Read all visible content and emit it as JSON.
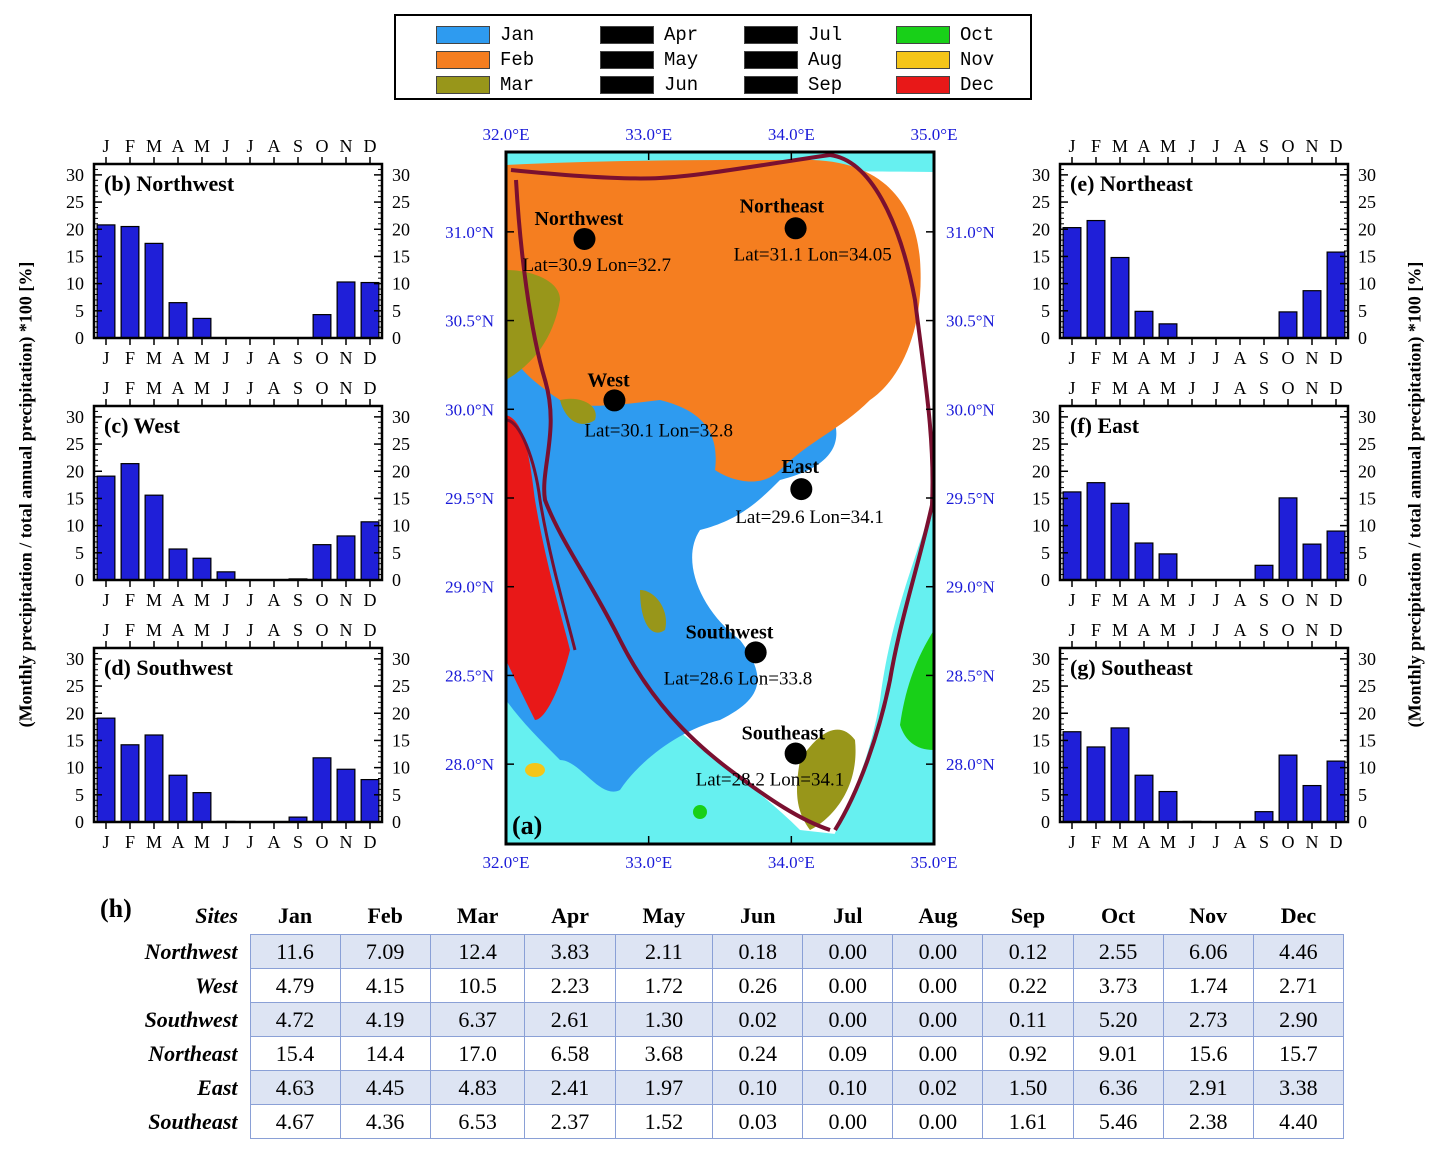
{
  "legend": [
    {
      "label": "Jan",
      "color": "#2e9bf0"
    },
    {
      "label": "Feb",
      "color": "#f57e20"
    },
    {
      "label": "Mar",
      "color": "#98961a"
    },
    {
      "label": "Apr",
      "color": "#000000"
    },
    {
      "label": "May",
      "color": "#000000"
    },
    {
      "label": "Jun",
      "color": "#000000"
    },
    {
      "label": "Jul",
      "color": "#000000"
    },
    {
      "label": "Aug",
      "color": "#000000"
    },
    {
      "label": "Sep",
      "color": "#000000"
    },
    {
      "label": "Oct",
      "color": "#18d018"
    },
    {
      "label": "Nov",
      "color": "#f5c518"
    },
    {
      "label": "Dec",
      "color": "#e81818"
    }
  ],
  "y_axis_label": "(Monthly precipitation / total annual precipitation) *100 [%]",
  "chart_data": [
    {
      "type": "bar",
      "panel": "(b)",
      "title": "Northwest",
      "categories": [
        "J",
        "F",
        "M",
        "A",
        "M",
        "J",
        "J",
        "A",
        "S",
        "O",
        "N",
        "D"
      ],
      "values": [
        20.8,
        20.5,
        17.4,
        6.5,
        3.6,
        0,
        0,
        0,
        0,
        4.3,
        10.3,
        10.2
      ],
      "ylim": [
        0,
        32
      ],
      "yticks": [
        0,
        5,
        10,
        15,
        20,
        25,
        30
      ],
      "bar_color": "#1f1fd8"
    },
    {
      "type": "bar",
      "panel": "(c)",
      "title": "West",
      "categories": [
        "J",
        "F",
        "M",
        "A",
        "M",
        "J",
        "J",
        "A",
        "S",
        "O",
        "N",
        "D"
      ],
      "values": [
        19.1,
        21.4,
        15.6,
        5.7,
        4.0,
        1.5,
        0,
        0,
        0.2,
        6.5,
        8.1,
        10.7
      ],
      "ylim": [
        0,
        32
      ],
      "yticks": [
        0,
        5,
        10,
        15,
        20,
        25,
        30
      ],
      "bar_color": "#1f1fd8"
    },
    {
      "type": "bar",
      "panel": "(d)",
      "title": "Southwest",
      "categories": [
        "J",
        "F",
        "M",
        "A",
        "M",
        "J",
        "J",
        "A",
        "S",
        "O",
        "N",
        "D"
      ],
      "values": [
        19.1,
        14.2,
        16.0,
        8.6,
        5.4,
        0.1,
        0,
        0,
        0.9,
        11.8,
        9.7,
        7.8
      ],
      "ylim": [
        0,
        32
      ],
      "yticks": [
        0,
        5,
        10,
        15,
        20,
        25,
        30
      ],
      "bar_color": "#1f1fd8"
    },
    {
      "type": "bar",
      "panel": "(e)",
      "title": "Northeast",
      "categories": [
        "J",
        "F",
        "M",
        "A",
        "M",
        "J",
        "J",
        "A",
        "S",
        "O",
        "N",
        "D"
      ],
      "values": [
        20.3,
        21.6,
        14.8,
        4.9,
        2.6,
        0,
        0,
        0,
        0,
        4.8,
        8.7,
        15.8
      ],
      "ylim": [
        0,
        32
      ],
      "yticks": [
        0,
        5,
        10,
        15,
        20,
        25,
        30
      ],
      "bar_color": "#1f1fd8"
    },
    {
      "type": "bar",
      "panel": "(f)",
      "title": "East",
      "categories": [
        "J",
        "F",
        "M",
        "A",
        "M",
        "J",
        "J",
        "A",
        "S",
        "O",
        "N",
        "D"
      ],
      "values": [
        16.2,
        17.9,
        14.1,
        6.8,
        4.8,
        0,
        0,
        0,
        2.7,
        15.1,
        6.6,
        9.0
      ],
      "ylim": [
        0,
        32
      ],
      "yticks": [
        0,
        5,
        10,
        15,
        20,
        25,
        30
      ],
      "bar_color": "#1f1fd8"
    },
    {
      "type": "bar",
      "panel": "(g)",
      "title": "Southeast",
      "categories": [
        "J",
        "F",
        "M",
        "A",
        "M",
        "J",
        "J",
        "A",
        "S",
        "O",
        "N",
        "D"
      ],
      "values": [
        16.6,
        13.8,
        17.3,
        8.6,
        5.6,
        0.1,
        0,
        0,
        1.9,
        12.3,
        6.7,
        11.2
      ],
      "ylim": [
        0,
        32
      ],
      "yticks": [
        0,
        5,
        10,
        15,
        20,
        25,
        30
      ],
      "bar_color": "#1f1fd8"
    },
    {
      "type": "table",
      "panel": "(h)",
      "columns": [
        "Sites",
        "Jan",
        "Feb",
        "Mar",
        "Apr",
        "May",
        "Jun",
        "Jul",
        "Aug",
        "Sep",
        "Oct",
        "Nov",
        "Dec"
      ],
      "rows": [
        [
          "Northwest",
          "11.6",
          "7.09",
          "12.4",
          "3.83",
          "2.11",
          "0.18",
          "0.00",
          "0.00",
          "0.12",
          "2.55",
          "6.06",
          "4.46"
        ],
        [
          "West",
          "4.79",
          "4.15",
          "10.5",
          "2.23",
          "1.72",
          "0.26",
          "0.00",
          "0.00",
          "0.22",
          "3.73",
          "1.74",
          "2.71"
        ],
        [
          "Southwest",
          "4.72",
          "4.19",
          "6.37",
          "2.61",
          "1.30",
          "0.02",
          "0.00",
          "0.00",
          "0.11",
          "5.20",
          "2.73",
          "2.90"
        ],
        [
          "Northeast",
          "15.4",
          "14.4",
          "17.0",
          "6.58",
          "3.68",
          "0.24",
          "0.09",
          "0.00",
          "0.92",
          "9.01",
          "15.6",
          "15.7"
        ],
        [
          "East",
          "4.63",
          "4.45",
          "4.83",
          "2.41",
          "1.97",
          "0.10",
          "0.10",
          "0.02",
          "1.50",
          "6.36",
          "2.91",
          "3.38"
        ],
        [
          "Southeast",
          "4.67",
          "4.36",
          "6.53",
          "2.37",
          "1.52",
          "0.03",
          "0.00",
          "0.00",
          "1.61",
          "5.46",
          "2.38",
          "4.40"
        ]
      ]
    }
  ],
  "map": {
    "panel": "(a)",
    "x_ticks": [
      "32.0°E",
      "33.0°E",
      "34.0°E",
      "35.0°E"
    ],
    "y_ticks": [
      "31.0°N",
      "30.5°N",
      "30.0°N",
      "29.5°N",
      "29.0°N",
      "28.5°N",
      "28.0°N"
    ],
    "lon_range": [
      32.0,
      35.0
    ],
    "lat_range": [
      27.55,
      31.45
    ],
    "sites": [
      {
        "name": "Northwest",
        "coord": "Lat=30.9 Lon=32.7",
        "lat": 30.96,
        "lon": 32.55
      },
      {
        "name": "Northeast",
        "coord": "Lat=31.1 Lon=34.05",
        "lat": 31.02,
        "lon": 34.03
      },
      {
        "name": "West",
        "coord": "Lat=30.1 Lon=32.8",
        "lat": 30.05,
        "lon": 32.76
      },
      {
        "name": "East",
        "coord": "Lat=29.6 Lon=34.1",
        "lat": 29.55,
        "lon": 34.07
      },
      {
        "name": "Southwest",
        "coord": "Lat=28.6 Lon=33.8",
        "lat": 28.63,
        "lon": 33.75
      },
      {
        "name": "Southeast",
        "coord": "Lat=28.2 Lon=34.1",
        "lat": 28.06,
        "lon": 34.03
      }
    ],
    "colors": {
      "sea": "#66f0f0",
      "jan": "#2e9bf0",
      "feb": "#f57e20",
      "mar": "#98961a",
      "oct": "#18d018",
      "nov": "#f5c518",
      "dec": "#e81818",
      "border": "#7a1030",
      "axis_label": "#1a1ad8"
    }
  }
}
